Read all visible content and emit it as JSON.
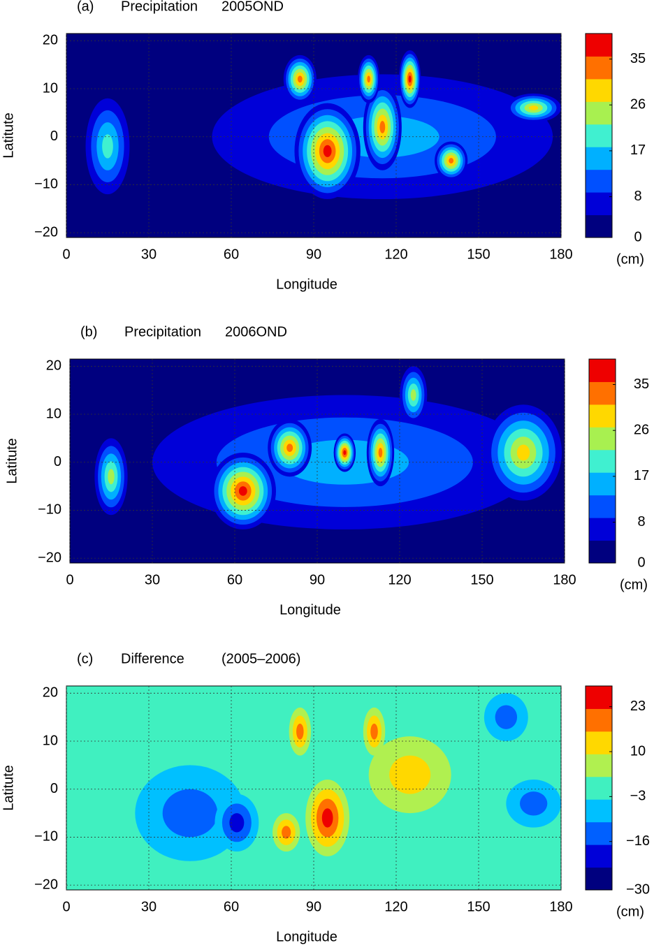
{
  "panels": [
    {
      "chart_data": {
        "type": "contour",
        "label": "(a)",
        "title": "Precipitation",
        "subtitle": "2005OND",
        "xlabel": "Longitude",
        "ylabel": "Latitute",
        "xlim": [
          0,
          180
        ],
        "ylim": [
          -21,
          21.5
        ],
        "xticks": [
          0,
          30,
          60,
          90,
          120,
          150,
          180
        ],
        "yticks": [
          {
            "value": -20,
            "label": "−20"
          },
          {
            "value": -10,
            "label": "−10"
          },
          0,
          10,
          20
        ],
        "grid": true,
        "colorbar": {
          "lim": [
            0,
            40
          ],
          "ticks": [
            0,
            8,
            17,
            26,
            35
          ],
          "unit": "(cm)",
          "colors": [
            "#00007f",
            "#0000d8",
            "#0050ff",
            "#00b0ff",
            "#40f0d0",
            "#a8f050",
            "#ffd800",
            "#ff7000",
            "#ee0000"
          ]
        }
      }
    },
    {
      "chart_data": {
        "type": "contour",
        "label": "(b)",
        "title": "Precipitation",
        "subtitle": "2006OND",
        "xlabel": "Longitude",
        "ylabel": "Latitute",
        "xlim": [
          0,
          180
        ],
        "ylim": [
          -21,
          21.5
        ],
        "xticks": [
          0,
          30,
          60,
          90,
          120,
          150,
          180
        ],
        "yticks": [
          {
            "value": -20,
            "label": "−20"
          },
          {
            "value": -10,
            "label": "−10"
          },
          0,
          10,
          20
        ],
        "grid": true,
        "colorbar": {
          "lim": [
            0,
            40
          ],
          "ticks": [
            0,
            8,
            17,
            26,
            35
          ],
          "unit": "(cm)",
          "colors": [
            "#00007f",
            "#0000d8",
            "#0050ff",
            "#00b0ff",
            "#40f0d0",
            "#a8f050",
            "#ffd800",
            "#ff7000",
            "#ee0000"
          ]
        }
      }
    },
    {
      "chart_data": {
        "type": "contour",
        "label": "(c)",
        "title": "Difference",
        "subtitle": "(2005–2006)",
        "xlabel": "Longitude",
        "ylabel": "Latitute",
        "xlim": [
          0,
          180
        ],
        "ylim": [
          -21,
          21.5
        ],
        "xticks": [
          0,
          30,
          60,
          90,
          120,
          150,
          180
        ],
        "yticks": [
          {
            "value": -20,
            "label": "−20"
          },
          {
            "value": -10,
            "label": "−10"
          },
          0,
          10,
          20
        ],
        "grid": true,
        "colorbar": {
          "lim": [
            -30,
            29
          ],
          "ticks": [
            {
              "value": -30,
              "label": "−30"
            },
            {
              "value": -16,
              "label": "−16"
            },
            {
              "value": -3,
              "label": "−3"
            },
            10,
            23
          ],
          "unit": "(cm)",
          "colors": [
            "#00007f",
            "#0000d8",
            "#0060ff",
            "#00c0ff",
            "#40f0c0",
            "#b0f050",
            "#ffd800",
            "#ff7000",
            "#ee0000"
          ]
        }
      }
    }
  ]
}
